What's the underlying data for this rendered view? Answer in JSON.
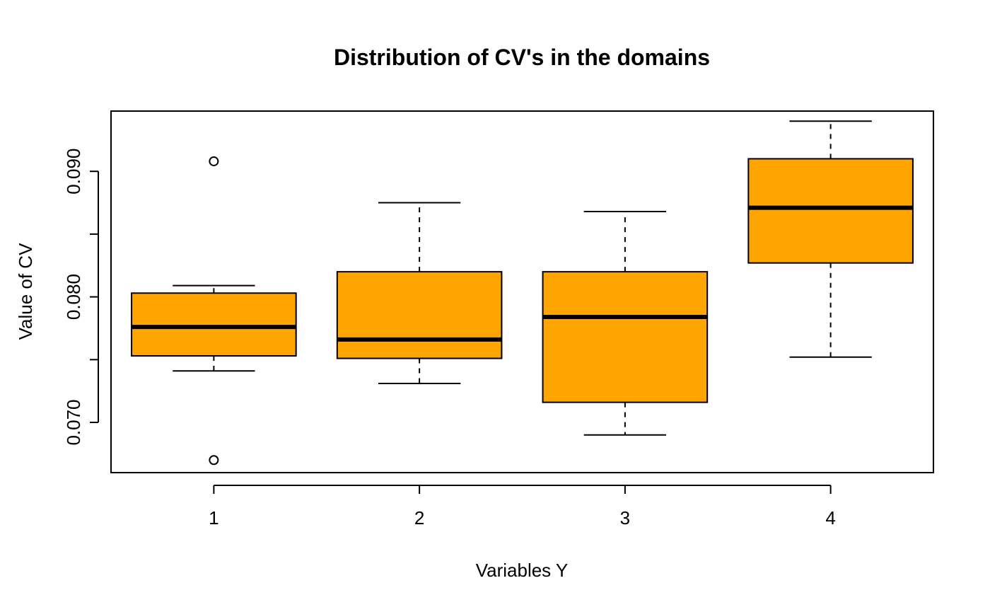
{
  "chart_data": {
    "type": "box",
    "title": "Distribution of CV's in the domains",
    "xlabel": "Variables Y",
    "ylabel": "Value of CV",
    "categories": [
      "1",
      "2",
      "3",
      "4"
    ],
    "y_ticks": [
      {
        "value": 0.07,
        "label": "0.070"
      },
      {
        "value": 0.08,
        "label": "0.080"
      },
      {
        "value": 0.09,
        "label": "0.090"
      }
    ],
    "ylim": [
      0.066,
      0.0948
    ],
    "box_fill_color": "#ffa500",
    "grid": false,
    "boxes": [
      {
        "category": "1",
        "whisker_low": 0.0741,
        "q1": 0.0753,
        "median": 0.0776,
        "q3": 0.0803,
        "whisker_high": 0.0809,
        "outliers": [
          0.0908,
          0.067
        ]
      },
      {
        "category": "2",
        "whisker_low": 0.0731,
        "q1": 0.0751,
        "median": 0.0766,
        "q3": 0.082,
        "whisker_high": 0.0875,
        "outliers": []
      },
      {
        "category": "3",
        "whisker_low": 0.069,
        "q1": 0.0716,
        "median": 0.0784,
        "q3": 0.082,
        "whisker_high": 0.0868,
        "outliers": []
      },
      {
        "category": "4",
        "whisker_low": 0.0752,
        "q1": 0.0827,
        "median": 0.0871,
        "q3": 0.091,
        "whisker_high": 0.094,
        "outliers": []
      }
    ]
  }
}
